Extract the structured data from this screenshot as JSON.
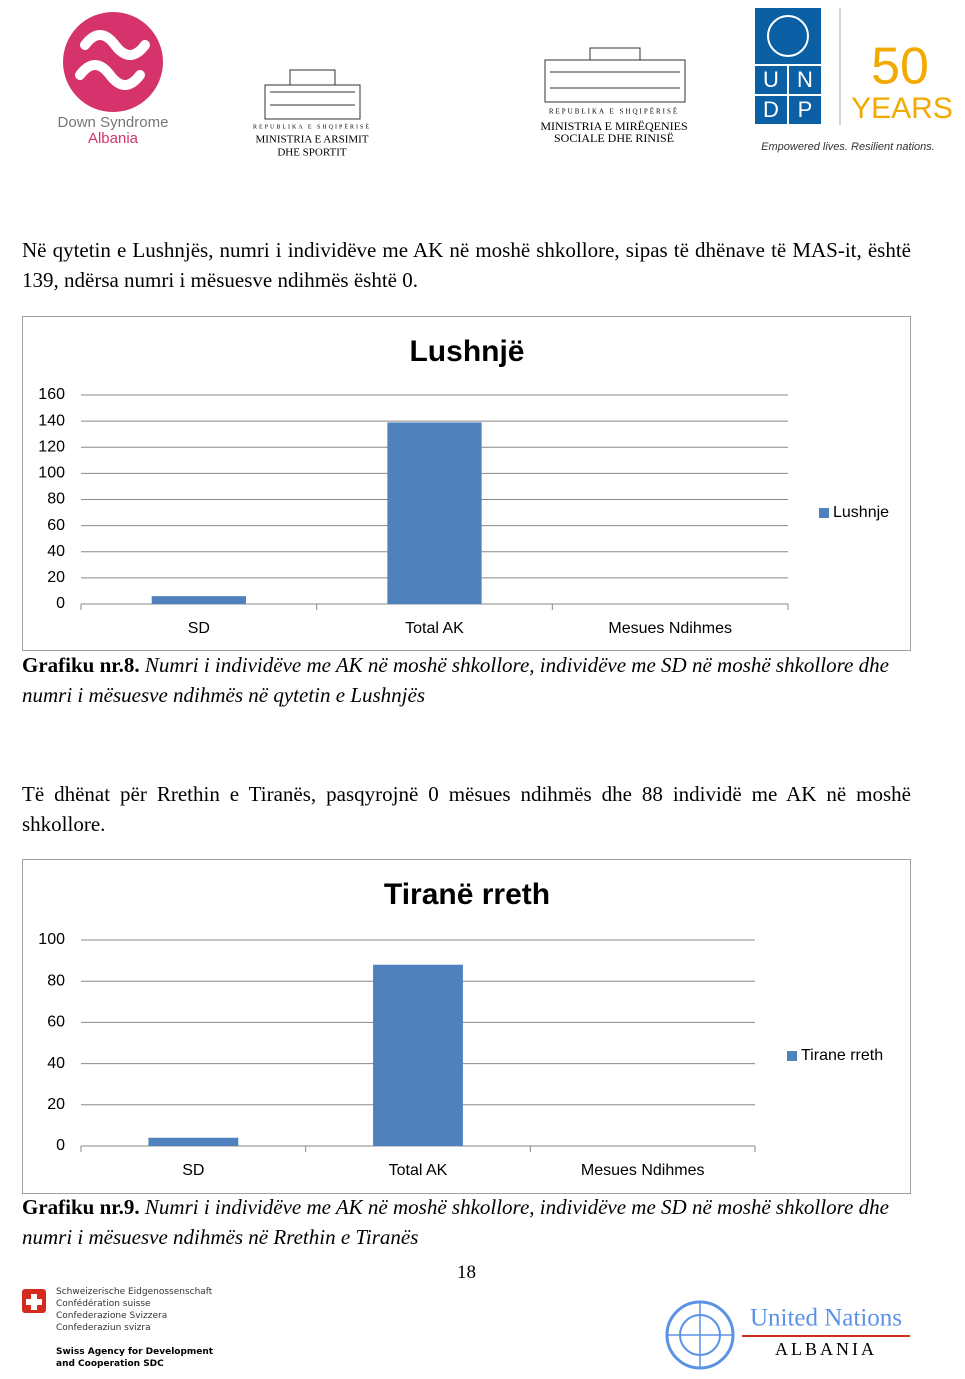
{
  "header": {
    "down_syndrome": {
      "line1": "Down Syndrome",
      "line2": "Albania"
    },
    "ministria_arsimit": {
      "republika": "REPUBLIKA E SHQIPËRISË",
      "line1": "MINISTRIA E ARSIMIT",
      "line2": "DHE SPORTIT"
    },
    "ministria_mireqenies": {
      "republika": "REPUBLIKA E SHQIPËRISË",
      "line1": "MINISTRIA E MIRËQENIES",
      "line2": "SOCIALE DHE RINISË"
    },
    "undp": {
      "letters": [
        "U",
        "N",
        "D",
        "P"
      ],
      "fifty": "50",
      "years": "YEARS",
      "tagline": "Empowered lives. Resilient nations."
    }
  },
  "paragraphs": [
    "Në qytetin e Lushnjës, numri i individëve me AK në moshë shkollore, sipas të dhënave të MAS-it, është 139, ndërsa numri i mësuesve ndihmës është 0.",
    "Të dhënat për Rrethin e Tiranës, pasqyrojnë 0 mësues ndihmës dhe 88 individë me AK në moshë shkollore."
  ],
  "chart_data": [
    {
      "type": "bar",
      "title": "Lushnjë",
      "categories": [
        "SD",
        "Total AK",
        "Mesues Ndihmes"
      ],
      "series": [
        {
          "name": "Lushnje",
          "color": "#4f81bd",
          "values": [
            6,
            139,
            0
          ]
        }
      ],
      "ylim": [
        0,
        160
      ],
      "yticks": [
        0,
        20,
        40,
        60,
        80,
        100,
        120,
        140,
        160
      ],
      "grid": true,
      "legend": "right"
    },
    {
      "type": "bar",
      "title": "Tiranë rreth",
      "categories": [
        "SD",
        "Total AK",
        "Mesues Ndihmes"
      ],
      "series": [
        {
          "name": "Tirane rreth",
          "color": "#4f81bd",
          "values": [
            4,
            88,
            0
          ]
        }
      ],
      "ylim": [
        0,
        100
      ],
      "yticks": [
        0,
        20,
        40,
        60,
        80,
        100
      ],
      "grid": true,
      "legend": "right"
    }
  ],
  "captions": [
    {
      "label": "Grafiku nr.8.",
      "text": "Numri i individëve me AK në moshë shkollore, individëve me SD në moshë shkollore dhe numri i mësuesve ndihmës në qytetin e Lushnjës"
    },
    {
      "label": "Grafiku nr.9.",
      "text": "Numri i individëve me AK në moshë shkollore, individëve me SD në moshë shkollore dhe numri i mësuesve ndihmës në Rrethin e Tiranës"
    }
  ],
  "page_number": "18",
  "footer": {
    "swiss": [
      "Schweizerische Eidgenossenschaft",
      "Confédération suisse",
      "Confederazione Svizzera",
      "Confederaziun svizra"
    ],
    "sdc": [
      "Swiss Agency for Development",
      "and Cooperation SDC"
    ],
    "un": {
      "name": "United Nations",
      "country": "ALBANIA"
    }
  }
}
